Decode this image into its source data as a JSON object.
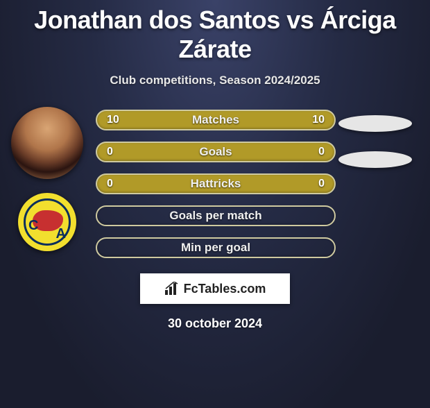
{
  "title": "Jonathan dos Santos vs Árciga Zárate",
  "subtitle": "Club competitions, Season 2024/2025",
  "date": "30 october 2024",
  "watermark": {
    "text": "FcTables.com",
    "icon_name": "bar-chart-icon",
    "bg_color": "#ffffff",
    "text_color": "#222222"
  },
  "colors": {
    "bar_fill": "#b19a28",
    "bar_border": "#cfcaa0",
    "bar_empty_border": "#cfcaa0",
    "text": "#f0f0f0",
    "ellipse": "#e6e6e6",
    "badge_yellow": "#f2df2e",
    "badge_navy": "#0a2e5c",
    "badge_red": "#c73030"
  },
  "bars": [
    {
      "label": "Matches",
      "left": "10",
      "right": "10",
      "fill": true
    },
    {
      "label": "Goals",
      "left": "0",
      "right": "0",
      "fill": true
    },
    {
      "label": "Hattricks",
      "left": "0",
      "right": "0",
      "fill": true
    },
    {
      "label": "Goals per match",
      "left": "",
      "right": "",
      "fill": false
    },
    {
      "label": "Min per goal",
      "left": "",
      "right": "",
      "fill": false
    }
  ],
  "left_player": {
    "avatar_name": "player-avatar",
    "club_badge_name": "club-badge",
    "club_letters": {
      "c": "C",
      "a": "A"
    }
  },
  "right_player": {
    "ellipse_count": 2
  }
}
